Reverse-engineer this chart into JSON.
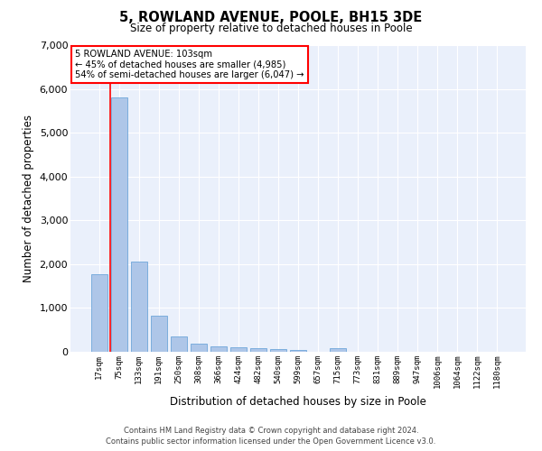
{
  "title": "5, ROWLAND AVENUE, POOLE, BH15 3DE",
  "subtitle": "Size of property relative to detached houses in Poole",
  "xlabel": "Distribution of detached houses by size in Poole",
  "ylabel": "Number of detached properties",
  "bar_color": "#aec6e8",
  "bar_edgecolor": "#5b9bd5",
  "ref_line_color": "red",
  "annotation_title": "5 ROWLAND AVENUE: 103sqm",
  "annotation_line1": "← 45% of detached houses are smaller (4,985)",
  "annotation_line2": "54% of semi-detached houses are larger (6,047) →",
  "footer1": "Contains HM Land Registry data © Crown copyright and database right 2024.",
  "footer2": "Contains public sector information licensed under the Open Government Licence v3.0.",
  "categories": [
    "17sqm",
    "75sqm",
    "133sqm",
    "191sqm",
    "250sqm",
    "308sqm",
    "366sqm",
    "424sqm",
    "482sqm",
    "540sqm",
    "599sqm",
    "657sqm",
    "715sqm",
    "773sqm",
    "831sqm",
    "889sqm",
    "947sqm",
    "1006sqm",
    "1064sqm",
    "1122sqm",
    "1180sqm"
  ],
  "values": [
    1780,
    5800,
    2060,
    820,
    340,
    185,
    115,
    95,
    88,
    68,
    50,
    10,
    90,
    0,
    0,
    0,
    0,
    0,
    0,
    0,
    0
  ],
  "ylim": [
    0,
    7000
  ],
  "yticks": [
    0,
    1000,
    2000,
    3000,
    4000,
    5000,
    6000,
    7000
  ],
  "background_color": "#eaf0fb",
  "grid_color": "#ffffff",
  "ref_line_x": 0.55
}
